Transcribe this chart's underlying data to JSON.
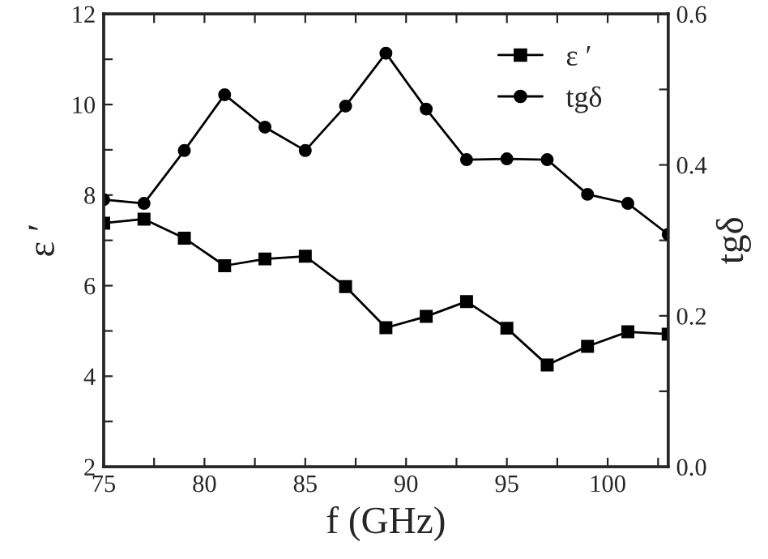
{
  "chart_data": {
    "type": "line",
    "xlabel": "f (GHz)",
    "ylabel": "ε ′",
    "y2label": "tgδ",
    "x": [
      75,
      77,
      79,
      81,
      83,
      85,
      87,
      89,
      91,
      93,
      95,
      97,
      99,
      101,
      103
    ],
    "series": [
      {
        "name": "ε ′",
        "color": "#000000",
        "marker": "square",
        "values": [
          7.38,
          7.47,
          7.05,
          6.44,
          6.59,
          6.65,
          5.98,
          5.07,
          5.32,
          5.65,
          5.06,
          4.25,
          4.66,
          4.98,
          4.93
        ]
      },
      {
        "name": "tgδ",
        "color": "#000000",
        "marker": "circle",
        "axis": "y2",
        "values": [
          0.354,
          0.349,
          0.419,
          0.493,
          0.45,
          0.419,
          0.478,
          0.548,
          0.474,
          0.407,
          0.408,
          0.407,
          0.361,
          0.349,
          0.308
        ]
      }
    ],
    "xlim": [
      75,
      103
    ],
    "xticks": [
      75,
      {
        "value": 77.5,
        "label": null
      },
      80,
      {
        "value": 82.5,
        "label": null
      },
      85,
      {
        "value": 87.5,
        "label": null
      },
      90,
      {
        "value": 92.5,
        "label": null
      },
      95,
      {
        "value": 97.5,
        "label": null
      },
      100,
      {
        "value": 102.5,
        "label": null
      }
    ],
    "ylim": [
      2,
      12
    ],
    "yticks": [
      2,
      {
        "value": 3,
        "label": null
      },
      4,
      {
        "value": 5,
        "label": null
      },
      6,
      {
        "value": 7,
        "label": null
      },
      8,
      {
        "value": 9,
        "label": null
      },
      10,
      {
        "value": 11,
        "label": null
      },
      12
    ],
    "y2lim": [
      0,
      0.6
    ],
    "y2ticks": [
      {
        "value": 0,
        "label": "0.0"
      },
      {
        "value": 0.1,
        "label": null
      },
      {
        "value": 0.2,
        "label": "0.2"
      },
      {
        "value": 0.3,
        "label": null
      },
      {
        "value": 0.4,
        "label": "0.4"
      },
      {
        "value": 0.5,
        "label": null
      },
      {
        "value": 0.6,
        "label": "0.6"
      }
    ],
    "legend": "top right",
    "grid": false,
    "line_style": "solid"
  }
}
